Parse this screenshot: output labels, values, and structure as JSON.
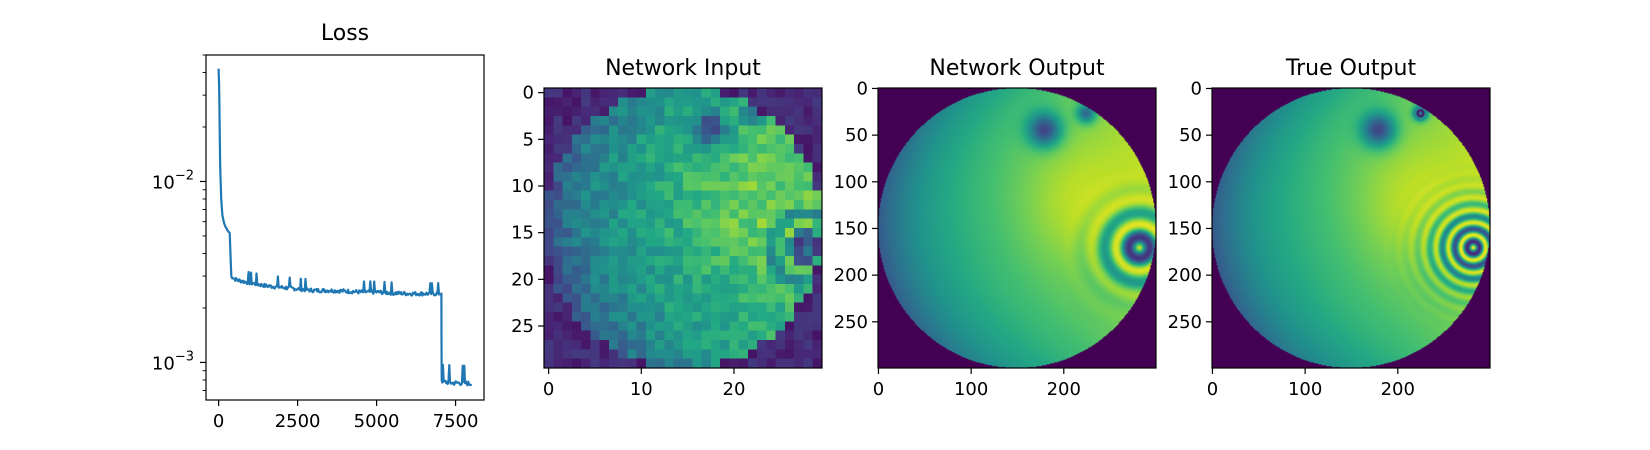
{
  "chart_data": [
    {
      "type": "line",
      "title": "Loss",
      "yscale": "log",
      "xlim": [
        -400,
        8400
      ],
      "ylim": [
        0.00062,
        0.05
      ],
      "xticks": [
        0,
        2500,
        5000,
        7500
      ],
      "xtick_labels": [
        "0",
        "2500",
        "5000",
        "7500"
      ],
      "yticks": [
        0.001,
        0.01
      ],
      "ytick_labels": [
        {
          "base": "10",
          "exp": "−3"
        },
        {
          "base": "10",
          "exp": "−2"
        }
      ],
      "color": "#1f77b4",
      "series": [
        {
          "x": [
            0,
            20,
            50,
            80,
            120,
            160,
            200,
            250,
            300,
            350,
            400,
            500,
            600,
            800,
            1000,
            1250,
            1500,
            2000,
            2500,
            3000,
            3500,
            4000,
            4500,
            5000,
            5500,
            6000,
            6500,
            6900,
            7050,
            7060,
            7100,
            7200,
            7400,
            7600,
            7800,
            8000
          ],
          "y": [
            0.042,
            0.03,
            0.012,
            0.008,
            0.0065,
            0.006,
            0.0057,
            0.0055,
            0.0053,
            0.0052,
            0.003,
            0.0029,
            0.00285,
            0.0028,
            0.00275,
            0.0027,
            0.00265,
            0.0026,
            0.00255,
            0.0025,
            0.0025,
            0.00248,
            0.00245,
            0.00245,
            0.00242,
            0.0024,
            0.0024,
            0.0024,
            0.0024,
            0.0008,
            0.00078,
            0.00078,
            0.00077,
            0.00077,
            0.00077,
            0.00076
          ]
        }
      ]
    },
    {
      "type": "heatmap",
      "title": "Network Input",
      "grid_size": 30,
      "xlim": [
        -0.5,
        29.5
      ],
      "ylim": [
        29.5,
        -0.5
      ],
      "xticks": [
        0,
        10,
        20
      ],
      "yticks": [
        0,
        5,
        10,
        15,
        20,
        25
      ],
      "colormap": "viridis",
      "pixelated": true
    },
    {
      "type": "heatmap",
      "title": "Network Output",
      "grid_size": 300,
      "xlim": [
        -0.5,
        299.5
      ],
      "ylim": [
        299.5,
        -0.5
      ],
      "xticks": [
        0,
        100,
        200
      ],
      "yticks": [
        0,
        50,
        100,
        150,
        200,
        250
      ],
      "colormap": "viridis",
      "pixelated": false
    },
    {
      "type": "heatmap",
      "title": "True Output",
      "grid_size": 300,
      "xlim": [
        -0.5,
        299.5
      ],
      "ylim": [
        299.5,
        -0.5
      ],
      "xticks": [
        0,
        100,
        200
      ],
      "yticks": [
        0,
        50,
        100,
        150,
        200,
        250
      ],
      "colormap": "viridis",
      "pixelated": false
    }
  ]
}
